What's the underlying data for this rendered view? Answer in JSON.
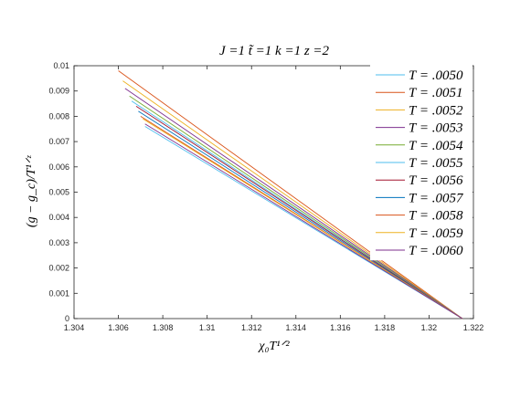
{
  "chart_data": {
    "type": "line",
    "title": "J =1 t̃ =1 k =1 z =2",
    "xlabel": "χ₀T¹ᐟ²",
    "ylabel": "(g − g_c)/T¹ᐟᶻ",
    "xlim": [
      1.304,
      1.322
    ],
    "ylim": [
      0,
      0.01
    ],
    "xticks": [
      "1.304",
      "1.306",
      "1.308",
      "1.31",
      "1.312",
      "1.314",
      "1.316",
      "1.318",
      "1.32",
      "1.322"
    ],
    "yticks": [
      "0",
      "0.001",
      "0.002",
      "0.003",
      "0.004",
      "0.005",
      "0.006",
      "0.007",
      "0.008",
      "0.009",
      "0.01"
    ],
    "grid": false,
    "legend_position": "top-right",
    "converge_point": [
      1.3215,
      0
    ],
    "series": [
      {
        "name": "T = .0050",
        "color": "#4dbeee",
        "x": [
          1.3072,
          1.3215
        ],
        "y": [
          0.0076,
          0
        ]
      },
      {
        "name": "T = .0051",
        "color": "#d95319",
        "x": [
          1.306,
          1.3215
        ],
        "y": [
          0.0098,
          0
        ]
      },
      {
        "name": "T = .0052",
        "color": "#edb120",
        "x": [
          1.3062,
          1.3215
        ],
        "y": [
          0.0094,
          0
        ]
      },
      {
        "name": "T = .0053",
        "color": "#7e2f8e",
        "x": [
          1.3063,
          1.3215
        ],
        "y": [
          0.0091,
          0
        ]
      },
      {
        "name": "T = .0054",
        "color": "#77ac30",
        "x": [
          1.3065,
          1.3215
        ],
        "y": [
          0.0088,
          0
        ]
      },
      {
        "name": "T = .0055",
        "color": "#4dbeee",
        "x": [
          1.3066,
          1.3215
        ],
        "y": [
          0.0086,
          0
        ]
      },
      {
        "name": "T = .0056",
        "color": "#a2142f",
        "x": [
          1.3068,
          1.3215
        ],
        "y": [
          0.0084,
          0
        ]
      },
      {
        "name": "T = .0057",
        "color": "#0072bd",
        "x": [
          1.3069,
          1.3215
        ],
        "y": [
          0.0082,
          0
        ]
      },
      {
        "name": "T = .0058",
        "color": "#d95319",
        "x": [
          1.307,
          1.3215
        ],
        "y": [
          0.008,
          0
        ]
      },
      {
        "name": "T = .0059",
        "color": "#edb120",
        "x": [
          1.3071,
          1.3215
        ],
        "y": [
          0.0079,
          0
        ]
      },
      {
        "name": "T = .0060",
        "color": "#7e2f8e",
        "x": [
          1.3072,
          1.3215
        ],
        "y": [
          0.0077,
          0
        ]
      }
    ]
  }
}
